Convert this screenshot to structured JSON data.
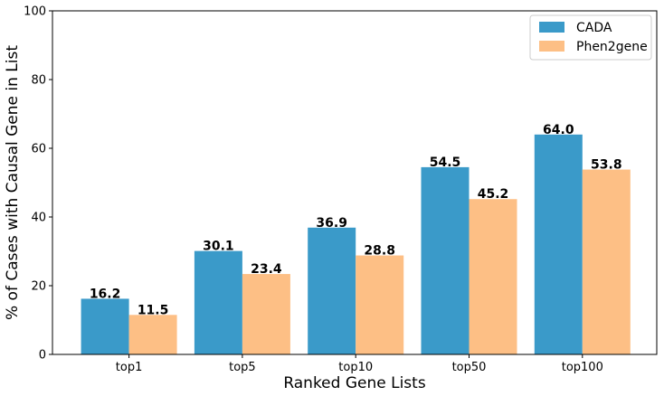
{
  "chart_data": {
    "type": "bar",
    "categories": [
      "top1",
      "top5",
      "top10",
      "top50",
      "top100"
    ],
    "series": [
      {
        "name": "CADA",
        "color": "#3a9ac9",
        "values": [
          16.2,
          30.1,
          36.9,
          54.5,
          64.0
        ],
        "labels": [
          "16.2",
          "30.1",
          "36.9",
          "54.5",
          "64.0"
        ]
      },
      {
        "name": "Phen2gene",
        "color": "#fdbf85",
        "values": [
          11.5,
          23.4,
          28.8,
          45.2,
          53.8
        ],
        "labels": [
          "11.5",
          "23.4",
          "28.8",
          "45.2",
          "53.8"
        ]
      }
    ],
    "title": "",
    "xlabel": "Ranked Gene Lists",
    "ylabel": "% of Cases with Causal Gene in List",
    "ylim": [
      0,
      100
    ],
    "yticks": [
      "0",
      "20",
      "40",
      "60",
      "80",
      "100"
    ],
    "grid": false,
    "legend_position": "top-right"
  }
}
